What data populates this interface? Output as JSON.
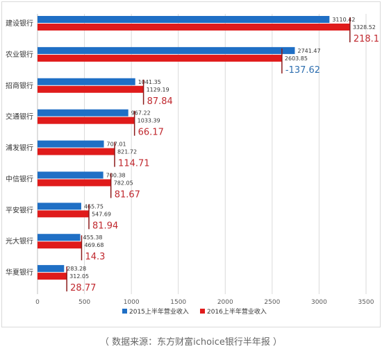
{
  "chart_data": {
    "type": "bar",
    "orientation": "horizontal",
    "categories": [
      "建设银行",
      "农业银行",
      "招商银行",
      "交通银行",
      "浦发银行",
      "中信银行",
      "平安银行",
      "光大银行",
      "华夏银行"
    ],
    "series": [
      {
        "name": "2015上半年营业收入",
        "values": [
          3110.42,
          2741.47,
          1041.35,
          967.22,
          707.01,
          700.38,
          465.75,
          455.38,
          283.28
        ],
        "color": "#1f6fc5"
      },
      {
        "name": "2016上半年营业收入",
        "values": [
          3328.52,
          2603.85,
          1129.19,
          1033.39,
          821.72,
          782.05,
          547.69,
          469.68,
          312.05
        ],
        "color": "#e01b1b"
      }
    ],
    "changes": [
      "218.1",
      "-137.62",
      "87.84",
      "66.17",
      "114.71",
      "81.67",
      "81.94",
      "14.3",
      "28.77"
    ],
    "change_colors": {
      "positive": "#c0282e",
      "negative": "#2e6fb0"
    },
    "xlim": [
      0,
      3500
    ],
    "xticks": [
      "0",
      "500",
      "1000",
      "1500",
      "2000",
      "2500",
      "3000",
      "3500"
    ],
    "grid": true,
    "legend": "bottom"
  },
  "source_note": "（ 数据来源：东方财富ichoice银行半年报 ）"
}
